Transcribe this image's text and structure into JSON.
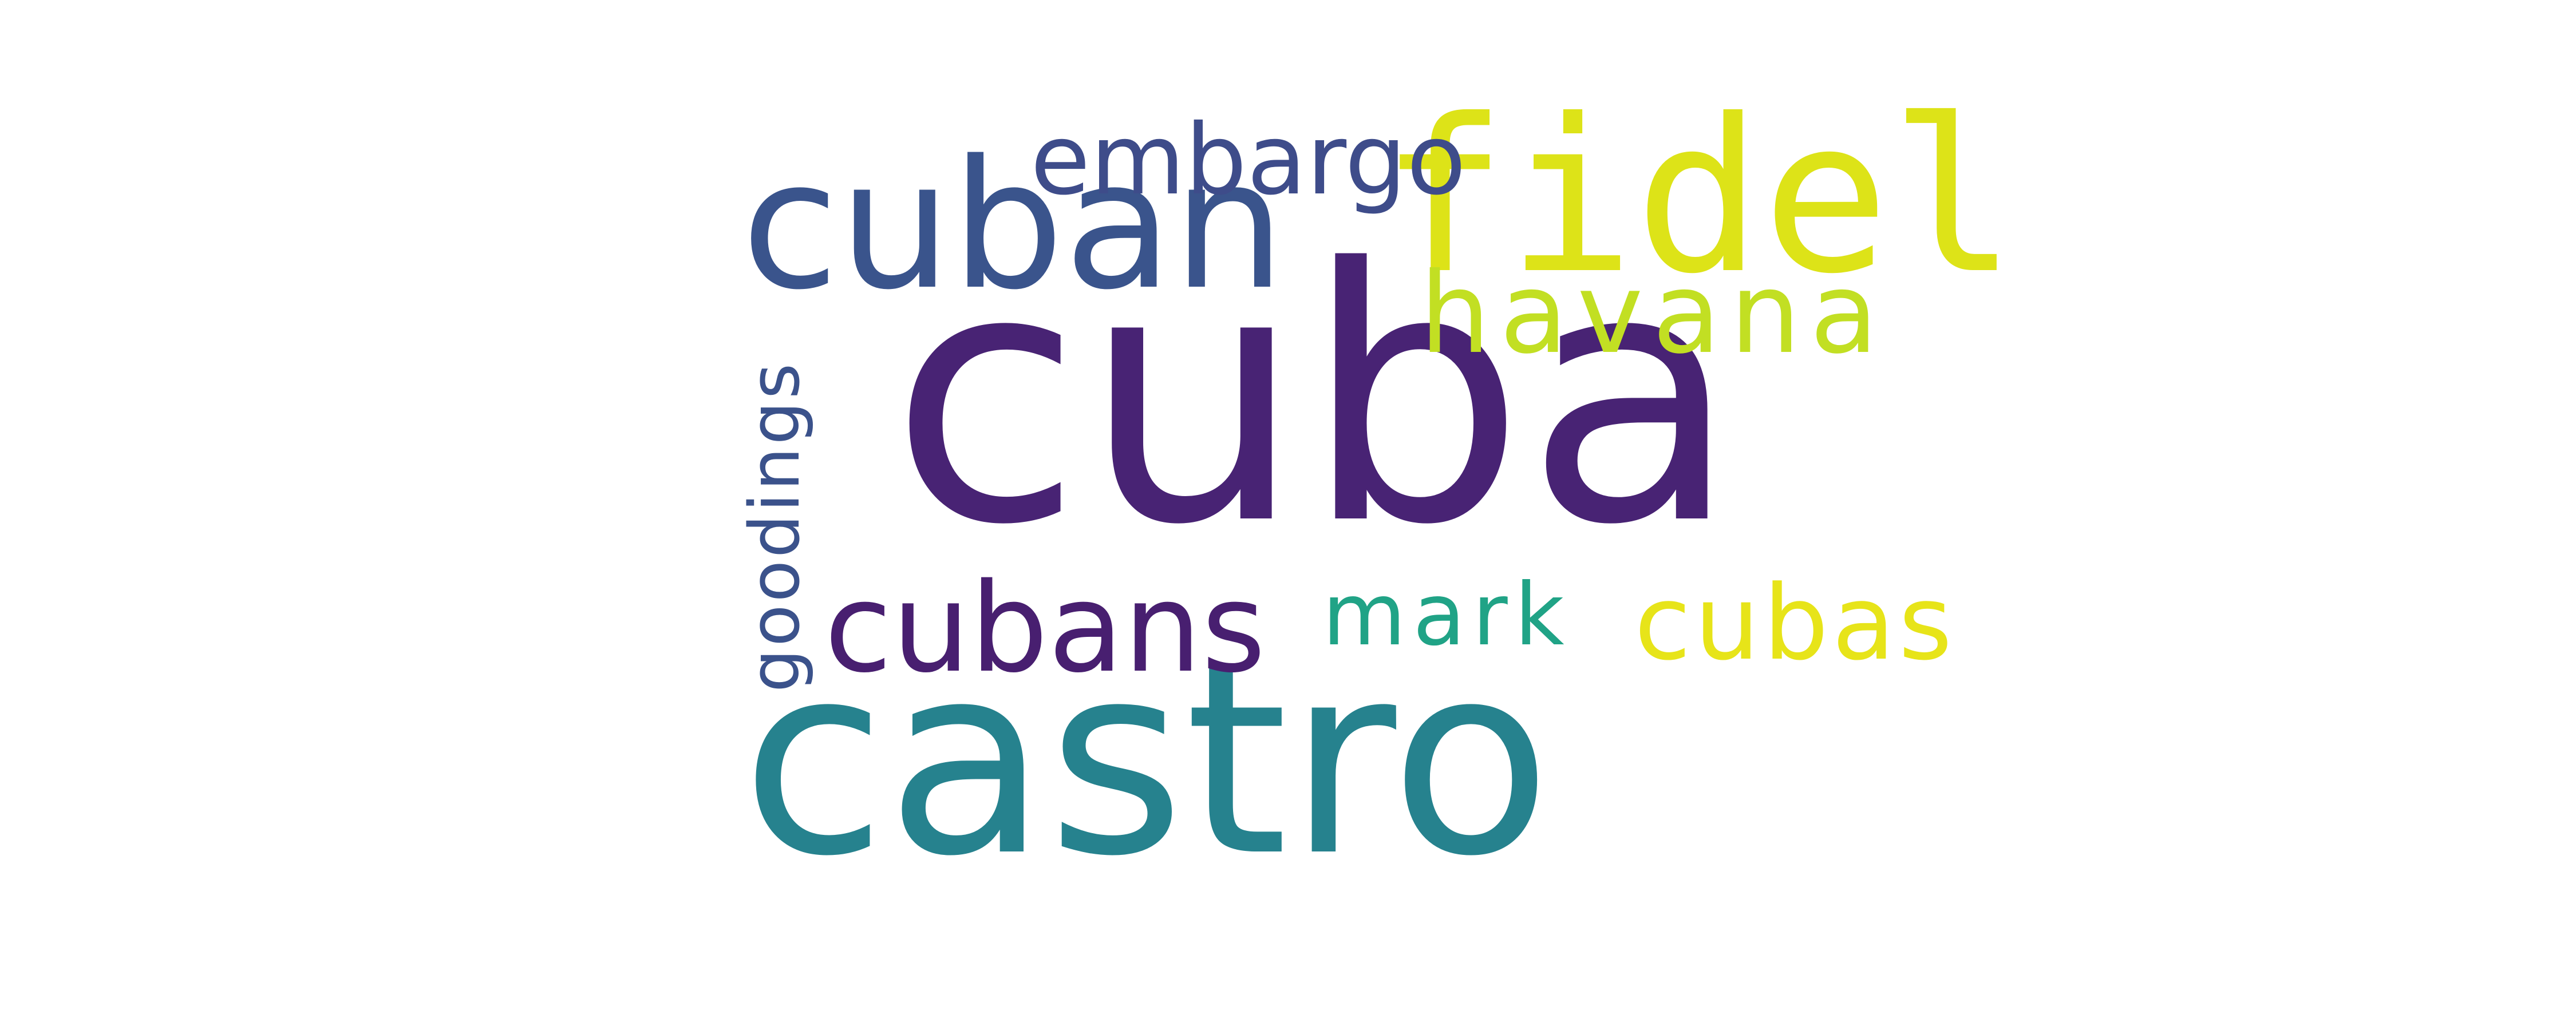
{
  "wordcloud": {
    "words": [
      {
        "key": "cuba",
        "text": "cuba",
        "color": "#482374"
      },
      {
        "key": "castro",
        "text": "castro",
        "color": "#26828e"
      },
      {
        "key": "cuban",
        "text": "cuban",
        "color": "#3a548c"
      },
      {
        "key": "fidel",
        "text": "fidel",
        "color": "#dde318"
      },
      {
        "key": "havana",
        "text": "havana",
        "color": "#c2df23"
      },
      {
        "key": "cubans",
        "text": "cubans",
        "color": "#481f70"
      },
      {
        "key": "cubas",
        "text": "cubas",
        "color": "#e7e419"
      },
      {
        "key": "embargo",
        "text": "embargo",
        "color": "#3e4c8a"
      },
      {
        "key": "mark",
        "text": "mark",
        "color": "#20a386"
      },
      {
        "key": "goodings",
        "text": "goodings",
        "color": "#3b528b"
      }
    ]
  }
}
